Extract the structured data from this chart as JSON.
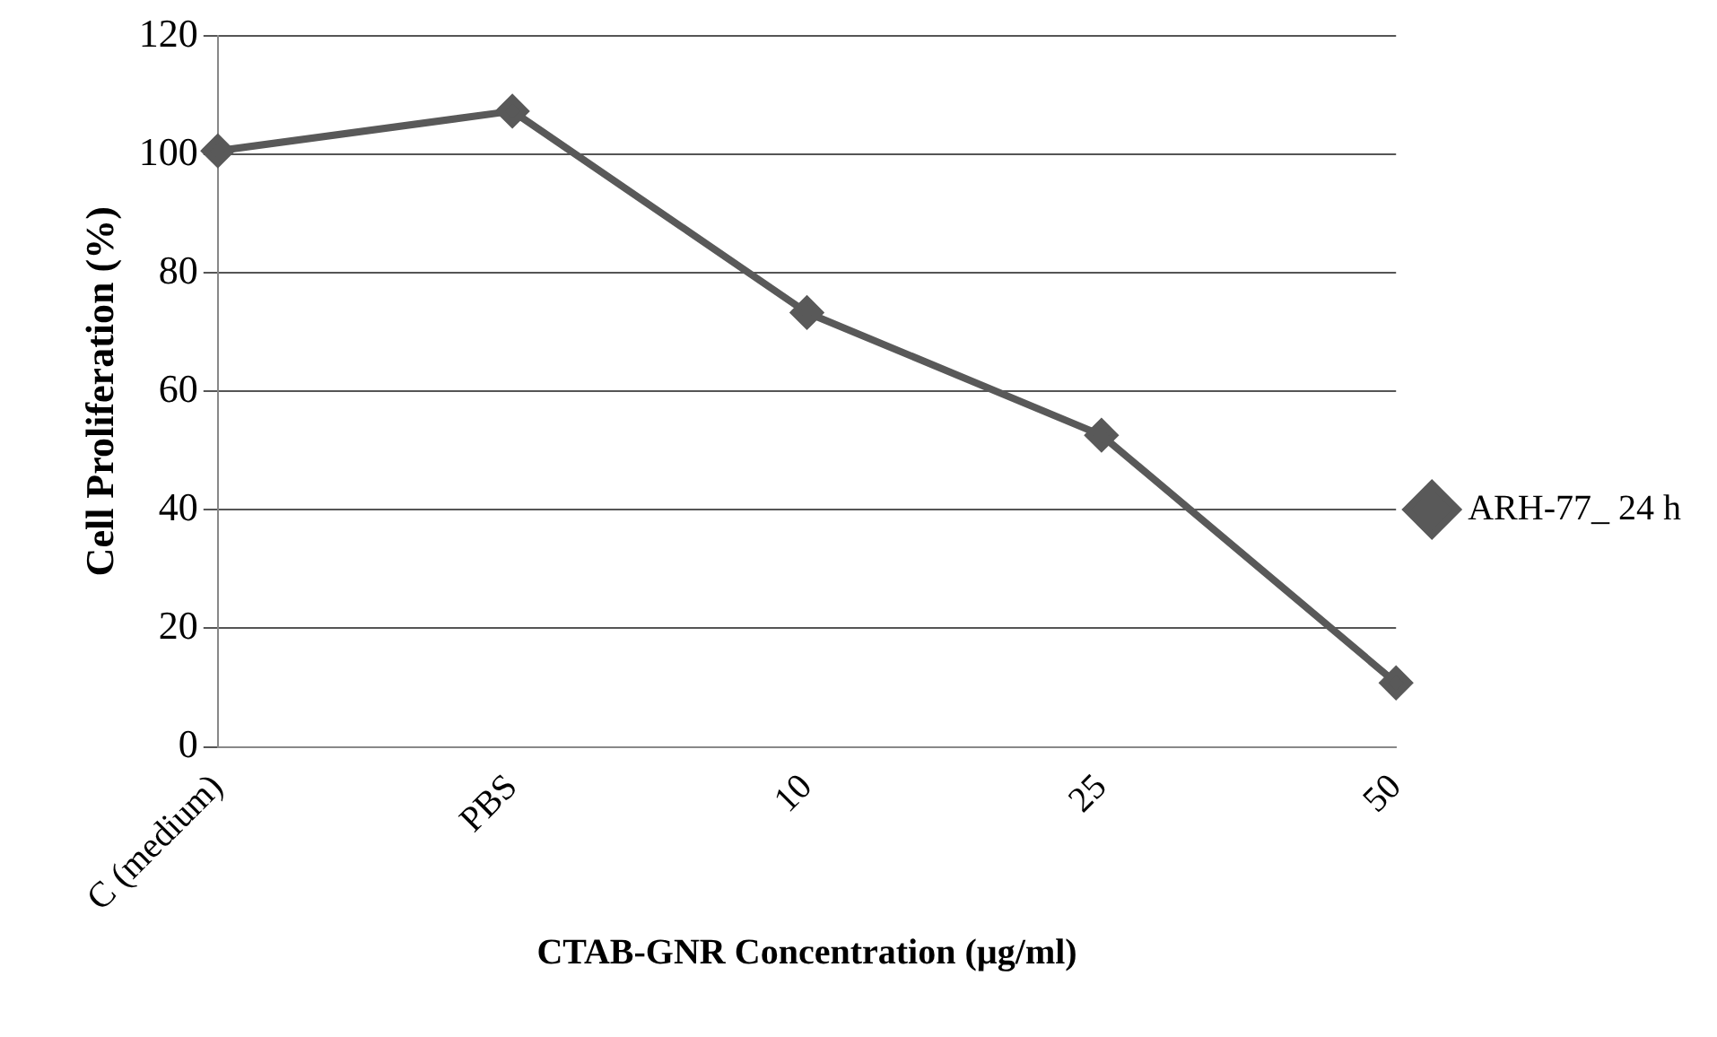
{
  "chart_data": {
    "type": "line",
    "xlabel": "CTAB-GNR Concentration (µg/ml)",
    "ylabel": "Cell Proliferation (%)",
    "categories": [
      "C (medium)",
      "PBS",
      "10",
      "25",
      "50"
    ],
    "series": [
      {
        "name": "ARH-77_ 24 h",
        "color": "#595959",
        "values": [
          100.6,
          107.3,
          73.3,
          52.6,
          10.8
        ]
      }
    ],
    "ylim": [
      0,
      120
    ],
    "yticks": [
      0,
      20,
      40,
      60,
      80,
      100,
      120
    ],
    "grid": "y",
    "legend": "right",
    "marker": "diamond"
  }
}
